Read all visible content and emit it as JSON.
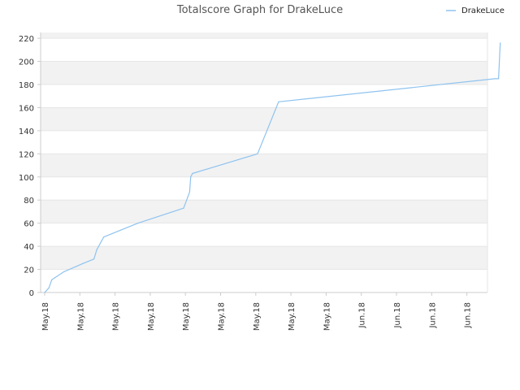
{
  "chart_data": {
    "type": "line",
    "title": "Totalscore Graph for DrakeLuce",
    "xlabel": "",
    "ylabel": "",
    "ylim": [
      0,
      225
    ],
    "yticks": [
      0,
      20,
      40,
      60,
      80,
      100,
      120,
      140,
      160,
      180,
      200,
      220
    ],
    "xtick_labels": [
      "May.18",
      "May.18",
      "May.18",
      "May.18",
      "May.18",
      "May.18",
      "May.18",
      "May.18",
      "May.18",
      "Jun.18",
      "Jun.18",
      "Jun.18",
      "Jun.18"
    ],
    "grid": true,
    "legend_position": "top-right",
    "colors": {
      "series": "#8ec3ef",
      "band": "#f2f2f2",
      "grid": "#e6e6e6",
      "axis": "#cccccc"
    },
    "series": [
      {
        "name": "DrakeLuce",
        "x": [
          0.0,
          0.12,
          0.2,
          0.3,
          0.55,
          1.08,
          1.4,
          1.48,
          1.68,
          2.65,
          3.95,
          4.12,
          4.15,
          4.2,
          6.05,
          6.65,
          12.8,
          12.9,
          12.95
        ],
        "y": [
          0,
          4,
          11,
          13,
          18,
          25,
          29,
          37,
          48,
          60,
          73,
          87,
          100,
          103,
          120,
          165,
          185,
          185,
          216
        ]
      }
    ]
  }
}
